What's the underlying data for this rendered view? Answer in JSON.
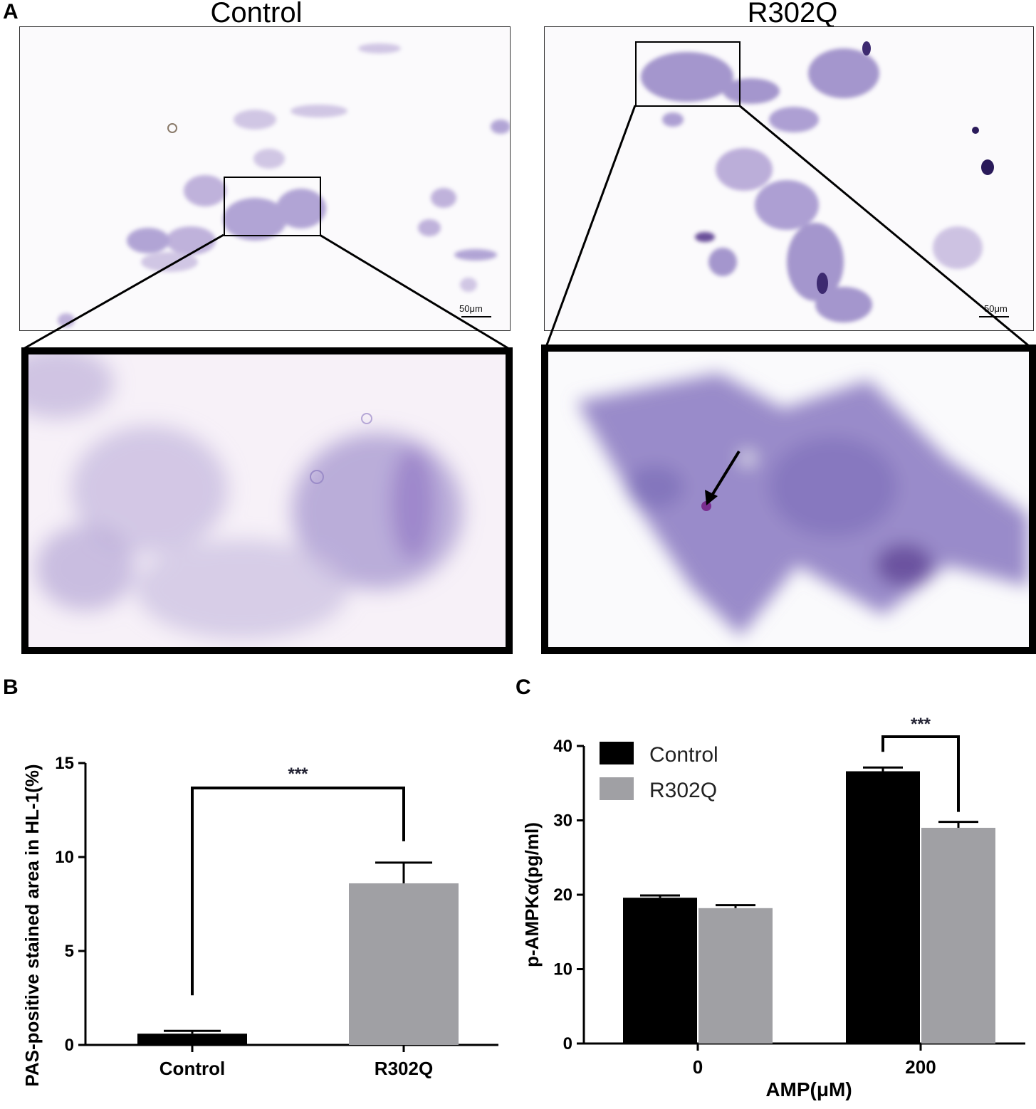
{
  "panel_a": {
    "letter": "A",
    "left_title": "Control",
    "right_title": "R302Q",
    "scale_left": "50μm",
    "scale_right": "50μm",
    "stain_colors": {
      "light": "#c9bde0",
      "mid": "#9b8cc8",
      "dark": "#5a3d8f",
      "bg": "#fbfafc"
    }
  },
  "chart_data": [
    {
      "panel": "B",
      "type": "bar",
      "categories": [
        "Control",
        "R302Q"
      ],
      "values": [
        0.6,
        8.6
      ],
      "errors": [
        0.15,
        1.1
      ],
      "colors": [
        "#000000",
        "#a0a0a4"
      ],
      "ylabel": "PAS-positive stained area in HL-1(%)",
      "xlabel": "",
      "ylim": [
        0,
        15
      ],
      "yticks": [
        0,
        5,
        10,
        15
      ],
      "significance": "***",
      "legend": "none",
      "grid": false
    },
    {
      "panel": "C",
      "type": "bar",
      "categories": [
        "0",
        "200"
      ],
      "series": [
        {
          "name": "Control",
          "values": [
            19.6,
            36.6
          ],
          "errors": [
            0.3,
            0.5
          ],
          "color": "#000000"
        },
        {
          "name": "R302Q",
          "values": [
            18.2,
            29.0
          ],
          "errors": [
            0.4,
            0.8
          ],
          "color": "#a0a0a4"
        }
      ],
      "xlabel": "AMP(μM)",
      "ylabel": "p-AMPKα(pg/ml)",
      "ylim": [
        0,
        40
      ],
      "yticks": [
        0,
        10,
        20,
        30,
        40
      ],
      "significance": "***",
      "legend": "top-left",
      "grid": false
    }
  ]
}
